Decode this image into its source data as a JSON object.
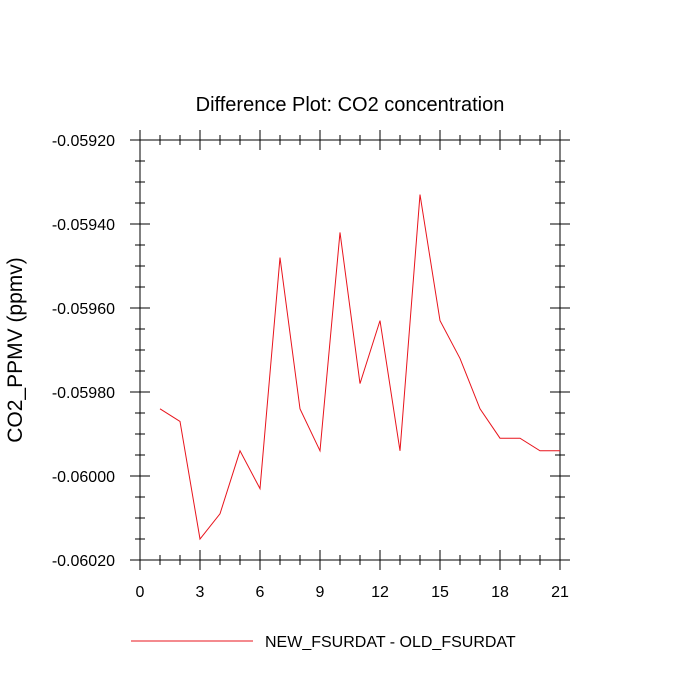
{
  "chart_data": {
    "type": "line",
    "title": "Difference Plot: CO2 concentration",
    "xlabel": "",
    "ylabel": "CO2_PPMV  (ppmv)",
    "xlim": [
      0,
      21
    ],
    "ylim": [
      -0.0602,
      -0.0592
    ],
    "xticks": [
      0,
      3,
      6,
      9,
      12,
      15,
      18,
      21
    ],
    "xtick_labels": [
      "0",
      "3",
      "6",
      "9",
      "12",
      "15",
      "18",
      "21"
    ],
    "yticks": [
      -0.0592,
      -0.0594,
      -0.0596,
      -0.0598,
      -0.06,
      -0.0602
    ],
    "ytick_labels": [
      "-0.05920",
      "-0.05940",
      "-0.05960",
      "-0.05980",
      "-0.06000",
      "-0.06020"
    ],
    "grid": false,
    "legend_position": "bottom",
    "series": [
      {
        "name": "NEW_FSURDAT - OLD_FSURDAT",
        "color": "#e8141c",
        "x": [
          1,
          2,
          3,
          4,
          5,
          6,
          7,
          8,
          9,
          10,
          11,
          12,
          13,
          14,
          15,
          16,
          17,
          18,
          19,
          20,
          21
        ],
        "y": [
          -0.05984,
          -0.05987,
          -0.06015,
          -0.06009,
          -0.05994,
          -0.06003,
          -0.05948,
          -0.05984,
          -0.05994,
          -0.05942,
          -0.05978,
          -0.05963,
          -0.05994,
          -0.05933,
          -0.05963,
          -0.05972,
          -0.05984,
          -0.05991,
          -0.05991,
          -0.05994,
          -0.05994
        ]
      }
    ]
  }
}
